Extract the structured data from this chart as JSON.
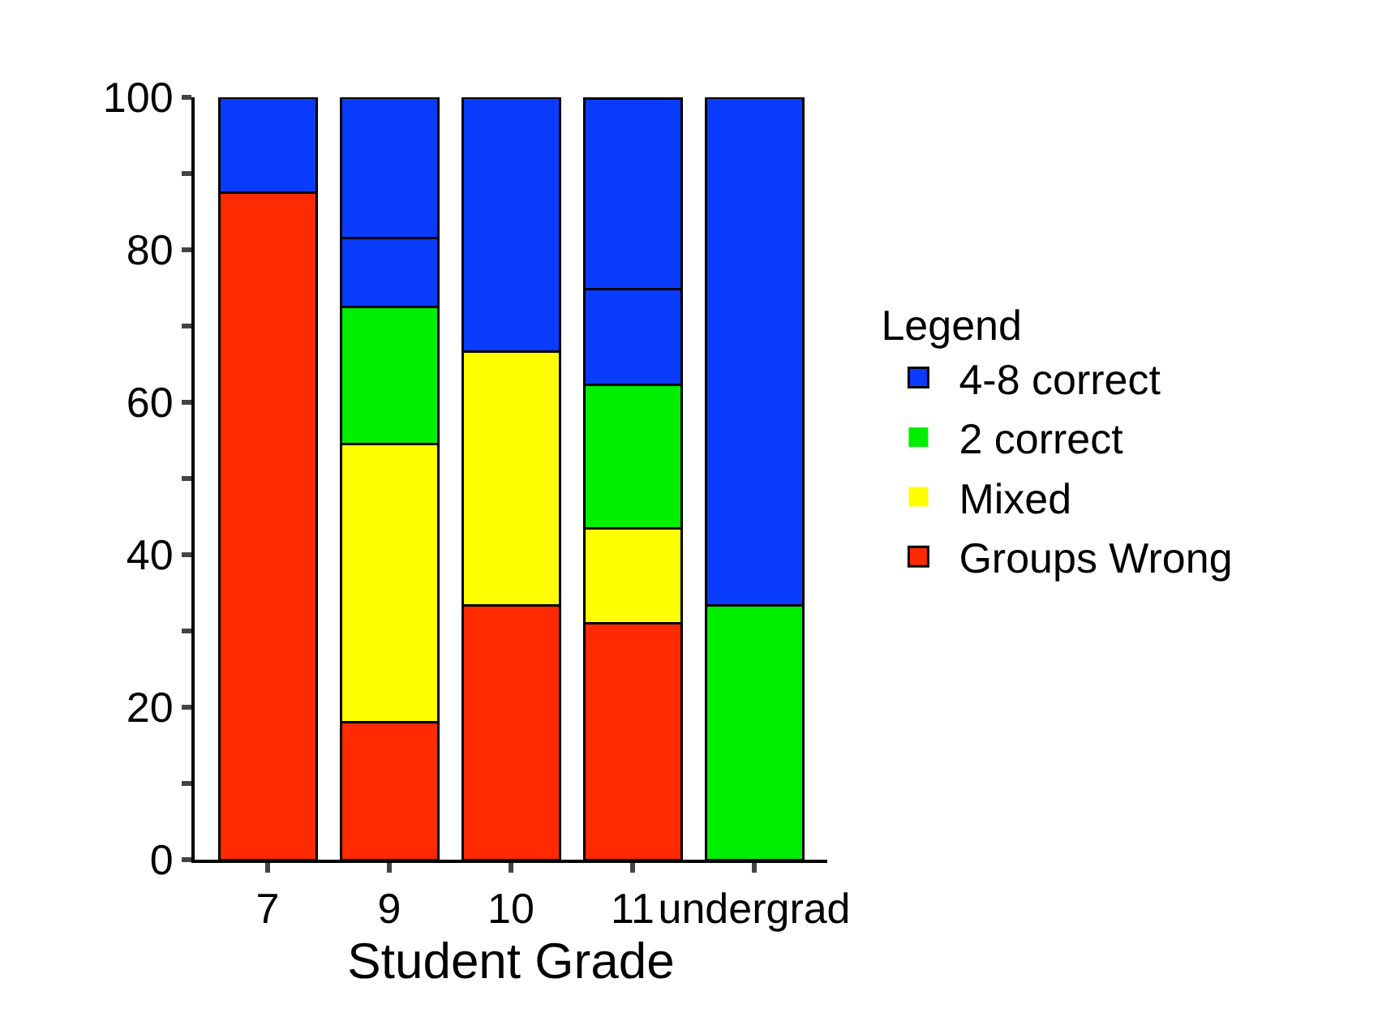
{
  "chart_data": {
    "type": "bar",
    "stacked": true,
    "xlabel": "Student Grade",
    "legend_title": "Legend",
    "legend": "right",
    "grid": false,
    "categories": [
      "7",
      "9",
      "10",
      "11",
      "undergrad"
    ],
    "ylim": [
      0,
      100
    ],
    "yticks": [
      0,
      {
        "value": 10,
        "label": null
      },
      20,
      {
        "value": 30,
        "label": null
      },
      40,
      {
        "value": 50,
        "label": null
      },
      60,
      {
        "value": 70,
        "label": null
      },
      80,
      {
        "value": 90,
        "label": null
      },
      100
    ],
    "series": [
      {
        "name": "Groups Wrong",
        "color": "#ff2a00",
        "values": [
          87.5,
          18,
          33.3,
          31,
          0
        ]
      },
      {
        "name": "Mixed",
        "color": "#ffff00",
        "values": [
          0,
          36.5,
          33.4,
          12.5,
          0
        ]
      },
      {
        "name": "2 correct",
        "color": "#00ee00",
        "values": [
          0,
          18,
          0,
          18.8,
          33.3
        ]
      },
      {
        "name": "4-8 correct",
        "color": "#0a3cff",
        "values": [
          12.5,
          9,
          33.3,
          12.5,
          66.7
        ]
      },
      {
        "color": "#0a3cff",
        "values": [
          0,
          18.5,
          0,
          25,
          0
        ]
      }
    ]
  }
}
